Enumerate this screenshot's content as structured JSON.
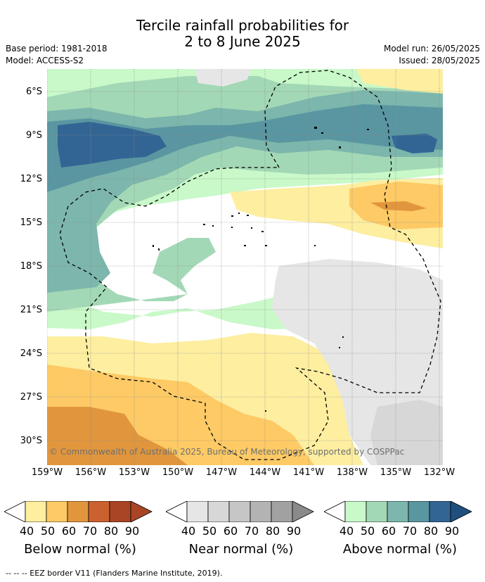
{
  "title": {
    "line1": "Tercile rainfall probabilities for",
    "line2": "2 to 8 June 2025"
  },
  "meta": {
    "base_period": "Base period: 1981-2018",
    "model": "Model: ACCESS-S2",
    "model_run": "Model run: 26/05/2025",
    "issued": "Issued: 28/05/2025"
  },
  "latitude_labels": [
    "6°S",
    "9°S",
    "12°S",
    "15°S",
    "18°S",
    "21°S",
    "24°S",
    "27°S",
    "30°S"
  ],
  "longitude_labels": [
    "159°W",
    "156°W",
    "153°W",
    "150°W",
    "147°W",
    "144°W",
    "141°W",
    "138°W",
    "135°W",
    "132°W"
  ],
  "copyright": "© Commonwealth of Australia 2025, Bureau of Meteorology, supported by COSPPac",
  "colorbars": [
    {
      "name": "below",
      "label": "Below normal (%)",
      "colors": [
        "#fdeea0",
        "#fdca65",
        "#e1963d",
        "#cc6130",
        "#a94524",
        "#a94524"
      ],
      "ticks": [
        "40",
        "50",
        "60",
        "70",
        "80",
        "90"
      ]
    },
    {
      "name": "near",
      "label": "Near normal (%)",
      "colors": [
        "#e6e6e6",
        "#d7d7d7",
        "#c6c6c6",
        "#b3b3b3",
        "#a1a1a1",
        "#8a8a8a"
      ],
      "ticks": [
        "40",
        "50",
        "60",
        "70",
        "80",
        "90"
      ]
    },
    {
      "name": "above",
      "label": "Above normal (%)",
      "colors": [
        "#c9f9c9",
        "#a3d8b6",
        "#7cb6ac",
        "#5a96a1",
        "#336594",
        "#1f4f7e"
      ],
      "ticks": [
        "40",
        "50",
        "60",
        "70",
        "80",
        "90"
      ]
    }
  ],
  "footer": "--  --  -- EEZ border V11 (Flanders Marine Institute, 2019)."
}
